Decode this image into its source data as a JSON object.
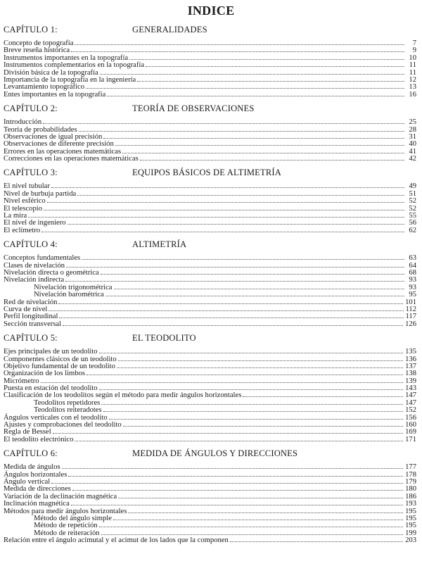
{
  "title": "INDICE",
  "chapters": [
    {
      "label": "CAPÍTULO 1:",
      "name": "GENERALIDADES",
      "entries": [
        {
          "text": "Concepto de topografía",
          "page": "7"
        },
        {
          "text": "Breve reseña histórica",
          "page": "9"
        },
        {
          "text": "Instrumentos importantes en la topografía",
          "page": "10"
        },
        {
          "text": "Instrumentos complementarios en la topografía",
          "page": "11"
        },
        {
          "text": "División básica de la topografía",
          "page": "11"
        },
        {
          "text": "Importancia de la topografía en la ingeniería",
          "page": "12"
        },
        {
          "text": "Levantamiento topográfico",
          "page": "13"
        },
        {
          "text": "Entes importantes en la topografía",
          "page": "16"
        }
      ]
    },
    {
      "label": "CAPÍTULO 2:",
      "name": "TEORÍA DE OBSERVACIONES",
      "entries": [
        {
          "text": "Introducción",
          "page": "25"
        },
        {
          "text": "Teoría de probabilidades",
          "page": "28"
        },
        {
          "text": "Observaciones de igual precisión",
          "page": "31"
        },
        {
          "text": "Observaciones de diferente precisión",
          "page": "40"
        },
        {
          "text": "Errores en las operaciones matemáticas",
          "page": "41"
        },
        {
          "text": "Correcciones en las operaciones matemáticas",
          "page": "42"
        }
      ]
    },
    {
      "label": "CAPÍTULO 3:",
      "name": "EQUIPOS BÁSICOS DE ALTIMETRÍA",
      "entries": [
        {
          "text": "El nivel tubular",
          "page": "49"
        },
        {
          "text": "Nivel de burbuja partida",
          "page": "51"
        },
        {
          "text": "Nivel esférico",
          "page": "52"
        },
        {
          "text": "El telescopio",
          "page": "52"
        },
        {
          "text": "La mira",
          "page": "55"
        },
        {
          "text": "El nivel de ingeniero",
          "page": "56"
        },
        {
          "text": "El eclímetro",
          "page": "62"
        }
      ]
    },
    {
      "label": "CAPÍTULO 4:",
      "name": "ALTIMETRÍA",
      "entries": [
        {
          "text": "Conceptos fundamentales",
          "page": "63"
        },
        {
          "text": "Clases de nivelación",
          "page": "64"
        },
        {
          "text": "Nivelación directa o geométrica",
          "page": "68"
        },
        {
          "text": "Nivelación indirecta",
          "page": "93"
        },
        {
          "text": "Nivelación trigonométrica",
          "page": "93",
          "sub": true
        },
        {
          "text": "Nivelación barométrica",
          "page": "95",
          "sub": true
        },
        {
          "text": "Red de nivelación",
          "page": "101"
        },
        {
          "text": "Curva de nivel",
          "page": "112"
        },
        {
          "text": "Perfil longitudinal",
          "page": "117"
        },
        {
          "text": "Sección transversal",
          "page": "126"
        }
      ]
    },
    {
      "label": "CAPÍTULO 5:",
      "name": "EL TEODOLITO",
      "entries": [
        {
          "text": "Ejes principales de un teodolito",
          "page": "135"
        },
        {
          "text": "Componentes clásicos de un teodolito",
          "page": "136"
        },
        {
          "text": "Objetivo fundamental de un teodolito",
          "page": "137"
        },
        {
          "text": "Organización de los limbos",
          "page": "138"
        },
        {
          "text": "Micrómetro",
          "page": "139"
        },
        {
          "text": "Puesta en estación del teodolito",
          "page": "143"
        },
        {
          "text": "Clasificación de los teodolitos según el método para medir ángulos horizontales",
          "page": "147"
        },
        {
          "text": "Teodolitos repetidores",
          "page": "147",
          "sub": true
        },
        {
          "text": "Teodolitos reiteradotes",
          "page": "152",
          "sub": true
        },
        {
          "text": "Ángulos verticales con el teodolito",
          "page": "156"
        },
        {
          "text": "Ajustes y comprobaciones del teodolito",
          "page": "160"
        },
        {
          "text": "Regla de Bessel",
          "page": "169"
        },
        {
          "text": "El teodolito electrónico",
          "page": "171"
        }
      ]
    },
    {
      "label": "CAPÍTULO 6:",
      "name": "MEDIDA DE ÁNGULOS Y DIRECCIONES",
      "entries": [
        {
          "text": "Medida de ángulos",
          "page": "177"
        },
        {
          "text": "Ángulos horizontales",
          "page": "178"
        },
        {
          "text": "Ángulo vertical",
          "page": "179"
        },
        {
          "text": "Medida de direcciones",
          "page": "180"
        },
        {
          "text": "Variación de la declinación magnética",
          "page": "186"
        },
        {
          "text": "Inclinación magnética",
          "page": "193"
        },
        {
          "text": "Métodos para medir ángulos horizontales",
          "page": "195"
        },
        {
          "text": "Método del ángulo simple",
          "page": "195",
          "sub": true
        },
        {
          "text": "Método de repetición",
          "page": "195",
          "sub": true
        },
        {
          "text": "Método de reiteración",
          "page": "199",
          "sub": true
        },
        {
          "text": "Relación entre el ángulo acimutal y el acimut de los lados que la componen",
          "page": "203"
        }
      ]
    }
  ]
}
